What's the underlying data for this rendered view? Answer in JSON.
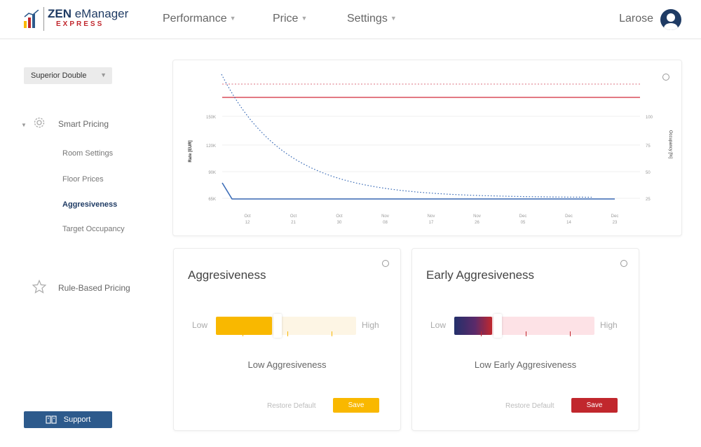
{
  "brand": {
    "name_bold": "ZEN",
    "name_rest": " eManager",
    "sub": "EXPRESS"
  },
  "nav": [
    {
      "label": "Performance"
    },
    {
      "label": "Price"
    },
    {
      "label": "Settings"
    }
  ],
  "user": {
    "name": "Larose"
  },
  "room_select": {
    "value": "Superior Double"
  },
  "sidebar": {
    "smart_pricing": "Smart Pricing",
    "sub_items": [
      "Room Settings",
      "Floor Prices",
      "Aggresiveness",
      "Target Occupancy"
    ],
    "active_sub": "Aggresiveness",
    "rule_based": "Rule-Based Pricing",
    "support": "Support"
  },
  "chart_data": {
    "type": "line",
    "ylabel": "Rate [EUR]",
    "y2label": "Occupancy [%]",
    "y_ticks": [
      "65K",
      "90K",
      "120K",
      "150K"
    ],
    "y2_ticks": [
      "25",
      "50",
      "75",
      "100"
    ],
    "x_ticks": [
      [
        "Oct",
        "12"
      ],
      [
        "Oct",
        "21"
      ],
      [
        "Oct",
        "30"
      ],
      [
        "Nov",
        "08"
      ],
      [
        "Nov",
        "17"
      ],
      [
        "Nov",
        "26"
      ],
      [
        "Dec",
        "05"
      ],
      [
        "Dec",
        "14"
      ],
      [
        "Dec",
        "23"
      ]
    ],
    "grid": true
  },
  "aggressiveness": {
    "title": "Aggresiveness",
    "low": "Low",
    "high": "High",
    "level": 0.4,
    "level_text": "Low Aggresiveness",
    "restore": "Restore Default",
    "save": "Save",
    "color": "#f9b800",
    "track_color": "#fdf5e4"
  },
  "early_aggressiveness": {
    "title": "Early Aggresiveness",
    "low": "Low",
    "high": "High",
    "level": 0.27,
    "level_text": "Low Early Aggresiveness",
    "restore": "Restore Default",
    "save": "Save",
    "color": "#c1272d",
    "track_color": "#fde2e6"
  }
}
